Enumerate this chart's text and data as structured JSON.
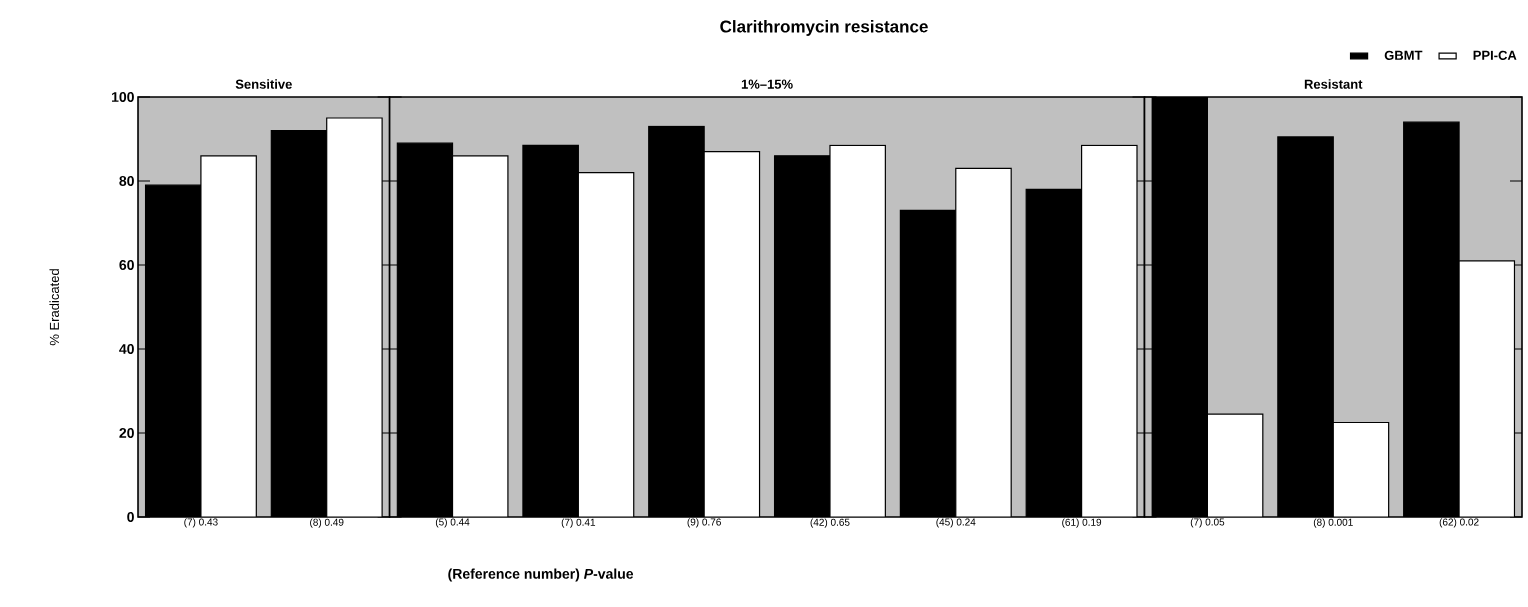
{
  "chart_data": [
    {
      "type": "bar",
      "title": "Sensitive",
      "ylabel": "% Eradicated",
      "annotations": [
        "Clarithromycin resistance"
      ],
      "categories": [
        "(7) 0.43",
        "(8) 0.49"
      ],
      "ylim": [
        0,
        100
      ],
      "yticks": [
        {
          "value": 0,
          "label": "0"
        },
        {
          "value": 20,
          "label": "20"
        },
        {
          "value": 40,
          "label": "40"
        },
        {
          "value": 60,
          "label": "60"
        },
        {
          "value": 80,
          "label": "80"
        },
        {
          "value": 100,
          "label": "100"
        }
      ],
      "series": [
        {
          "color": "#000000",
          "values": [
            79,
            92
          ]
        },
        {
          "color": "#ffffff",
          "values": [
            86,
            95
          ]
        }
      ]
    },
    {
      "type": "bar",
      "title": "1%–15%",
      "xlabel": "(Reference number) *P*-value",
      "categories": [
        "(5) 0.44",
        "(7) 0.41",
        "(9) 0.76",
        "(42) 0.65",
        "(45) 0.24",
        "(61) 0.19"
      ],
      "ylim": [
        0,
        100
      ],
      "yticks": [
        0,
        20,
        40,
        60,
        80,
        100
      ],
      "tick_labels": "x",
      "series": [
        {
          "color": "#000000",
          "values": [
            89,
            88.5,
            93,
            86,
            73,
            78
          ]
        },
        {
          "color": "#ffffff",
          "values": [
            86,
            82,
            87,
            88.5,
            83,
            88.5
          ]
        }
      ]
    },
    {
      "type": "bar",
      "title": "Resistant",
      "categories": [
        "(7) 0.05",
        "(8) 0.001",
        "(62) 0.02"
      ],
      "ylim": [
        0,
        100
      ],
      "yticks": [
        0,
        20,
        40,
        60,
        80,
        100
      ],
      "tick_labels": "x",
      "legend": "top right",
      "series": [
        {
          "name": "GBMT",
          "color": "#000000",
          "values": [
            100,
            90.5,
            94
          ]
        },
        {
          "name": "PPI-CA",
          "color": "#ffffff",
          "values": [
            24.5,
            22.5,
            61
          ]
        }
      ]
    }
  ]
}
